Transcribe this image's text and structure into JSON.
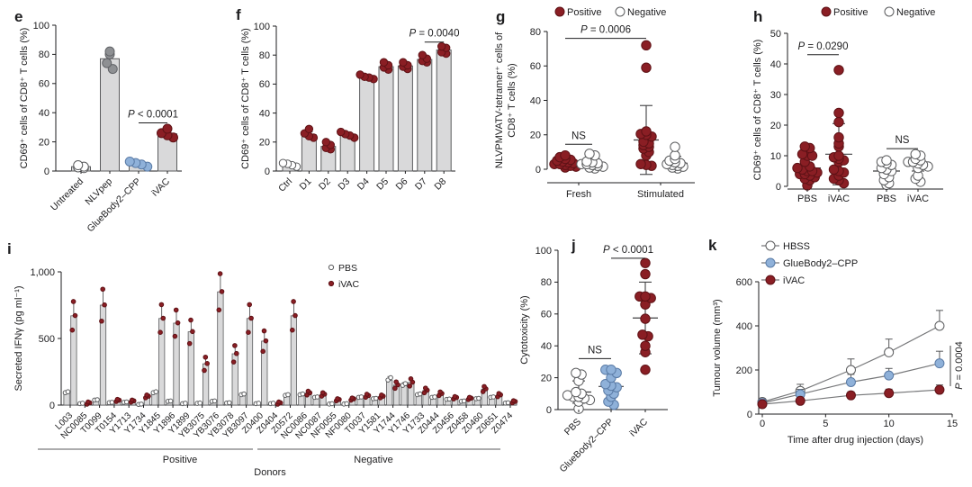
{
  "colors": {
    "red": "#8a1e24",
    "blue": "#8fb1d9",
    "gray": "#8e9093",
    "white": "#ffffff",
    "bar_fill": "#d9d9da",
    "bar_stroke": "#5b5c5e",
    "axis": "#1d1d1f",
    "line_gray": "#77787a"
  },
  "chart_data": [
    {
      "id": "e",
      "type": "bar",
      "panel_label": "e",
      "ylabel": "CD69⁺ cells of CD8⁺ T cells (%)",
      "ylim": [
        0,
        100
      ],
      "yticks": [
        0,
        20,
        40,
        60,
        80,
        100
      ],
      "categories": [
        "Untreated",
        "NLVpep",
        "GlueBody2–CPP",
        "iVAC"
      ],
      "values": [
        3,
        77,
        5,
        25.5
      ],
      "errors": [
        1.5,
        5,
        1.5,
        2.5
      ],
      "points": [
        [
          2,
          2.5,
          3,
          4
        ],
        [
          70,
          74,
          80,
          82
        ],
        [
          3,
          4.5,
          5.5,
          6.5
        ],
        [
          23,
          24.5,
          26,
          29
        ]
      ],
      "point_colors": [
        "white",
        "gray",
        "blue",
        "red"
      ],
      "sig": [
        {
          "text": "P < 0.0001",
          "from": 2,
          "to": 3,
          "v": 33
        }
      ]
    },
    {
      "id": "f",
      "type": "bar",
      "panel_label": "f",
      "ylabel": "CD69⁺ cells of CD8⁺ T cells (%)",
      "ylim": [
        0,
        100
      ],
      "yticks": [
        0,
        20,
        40,
        60,
        80,
        100
      ],
      "categories": [
        "Ctrl",
        "D1",
        "D2",
        "D3",
        "D4",
        "D5",
        "D6",
        "D7",
        "D8"
      ],
      "values": [
        4,
        25,
        17,
        25,
        65,
        72,
        72.5,
        77,
        83.5
      ],
      "errors": [
        1,
        2,
        1.5,
        1.5,
        1.5,
        2,
        2,
        2,
        2.5
      ],
      "points": [
        [
          3,
          4,
          5,
          5.5
        ],
        [
          23,
          24,
          26,
          29
        ],
        [
          15,
          16,
          18,
          20
        ],
        [
          23,
          24.5,
          25.5,
          27
        ],
        [
          63.5,
          64.5,
          65,
          66.5
        ],
        [
          70,
          71.5,
          73,
          75
        ],
        [
          70.5,
          72,
          73,
          75
        ],
        [
          75,
          76,
          77.5,
          80
        ],
        [
          81,
          82,
          85,
          86
        ]
      ],
      "point_colors": [
        "white",
        "red",
        "red",
        "red",
        "red",
        "red",
        "red",
        "red",
        "red"
      ],
      "sig": [
        {
          "text": "P = 0.0040",
          "from": 7,
          "to": 8,
          "v": 89
        }
      ]
    },
    {
      "id": "g",
      "type": "dots",
      "panel_label": "g",
      "ylabel_lines": [
        "NLVPMVATV-tetramer⁺ cells of",
        "CD8⁺ T cells (%)"
      ],
      "ylim": [
        0,
        80
      ],
      "yticks": [
        0,
        20,
        40,
        60,
        80
      ],
      "legend": [
        {
          "label": "Positive",
          "color": "red"
        },
        {
          "label": "Negative",
          "color": "white"
        }
      ],
      "cols": [
        {
          "series": "Positive",
          "color": "red",
          "points": [
            1,
            1.5,
            2,
            2.5,
            3,
            3,
            3.5,
            4,
            4.5,
            5,
            5.5,
            6,
            7,
            8
          ],
          "mean": 4,
          "lo": 1.5,
          "hi": 6.5
        },
        {
          "series": "Negative",
          "color": "white",
          "points": [
            0.5,
            1,
            1.5,
            2,
            2.5,
            3,
            3,
            3.5,
            4,
            4.5,
            8,
            9
          ],
          "mean": 3.5,
          "lo": 1,
          "hi": 6
        },
        {
          "series": "Positive",
          "color": "red",
          "points": [
            2,
            2.5,
            3,
            8,
            10,
            12,
            13,
            14,
            15,
            16,
            19,
            20,
            20.5,
            22,
            59,
            72
          ],
          "mean": 17,
          "lo": -3,
          "hi": 37
        },
        {
          "series": "Negative",
          "color": "white",
          "points": [
            0.5,
            1,
            1.5,
            2,
            2.5,
            3,
            3.5,
            4,
            5,
            6,
            8,
            13
          ],
          "mean": 3.5,
          "lo": 0,
          "hi": 7.5
        }
      ],
      "group_labels": [
        "Fresh",
        "Stimulated"
      ],
      "sig": [
        {
          "text": "NS",
          "cols": [
            0,
            1
          ],
          "v": 14.5
        },
        {
          "text": "P = 0.0006",
          "cols": [
            0,
            2
          ],
          "v": 76
        }
      ]
    },
    {
      "id": "h",
      "type": "dots",
      "panel_label": "h",
      "ylabel_lines": [
        "CD69⁺ cells of CD8⁺ T cells (%)"
      ],
      "ylim": [
        0,
        50
      ],
      "yticks": [
        0,
        10,
        20,
        30,
        40,
        50
      ],
      "legend": [
        {
          "label": "Positive",
          "color": "red"
        },
        {
          "label": "Negative",
          "color": "white"
        }
      ],
      "col_labels": [
        "PBS",
        "iVAC",
        "PBS",
        "iVAC"
      ],
      "cols": [
        {
          "series": "Positive",
          "color": "red",
          "points": [
            0.3,
            2,
            2.5,
            3,
            3.5,
            4,
            4,
            4.5,
            5,
            5,
            5.5,
            6,
            6.5,
            8,
            10,
            10,
            10.5,
            12.5,
            13
          ],
          "mean": 6,
          "lo": 3,
          "hi": 9.5
        },
        {
          "series": "Positive",
          "color": "red",
          "points": [
            1,
            2,
            2.5,
            3.5,
            4.5,
            5,
            5.5,
            8,
            8.5,
            9,
            9.5,
            10,
            13,
            14,
            16,
            21,
            24,
            38
          ],
          "mean": 10.5,
          "lo": 0.5,
          "hi": 20.5
        },
        {
          "series": "Negative",
          "color": "white",
          "points": [
            0.5,
            1,
            2,
            3,
            4,
            5,
            5.5,
            6,
            7,
            7.5,
            8,
            8.5
          ],
          "mean": 5,
          "lo": 2.5,
          "hi": 7.5
        },
        {
          "series": "Negative",
          "color": "white",
          "points": [
            1.5,
            2.5,
            3.5,
            6,
            6.5,
            7,
            7.5,
            8,
            8,
            8.5,
            9,
            10,
            10.5
          ],
          "mean": 7,
          "lo": 5,
          "hi": 9.5
        }
      ],
      "sig": [
        {
          "text": "P = 0.0290",
          "cols": [
            0,
            1
          ],
          "v": 43
        },
        {
          "text": "NS",
          "cols": [
            2,
            3
          ],
          "v": 12.3
        }
      ]
    },
    {
      "id": "i",
      "type": "paired_bars",
      "panel_label": "i",
      "ylabel": "Secreted IFNγ (pg ml⁻¹)",
      "ylim": [
        0,
        1000
      ],
      "yticks": [
        0,
        500,
        1000
      ],
      "ytick_labels": [
        "0",
        "500",
        "1,000"
      ],
      "legend": [
        {
          "label": "PBS",
          "color": "white"
        },
        {
          "label": "iVAC",
          "color": "red"
        }
      ],
      "xlabel": "Donors",
      "donors": [
        {
          "name": "L003",
          "pbs": 90,
          "ivac": 670
        },
        {
          "name": "NC0085",
          "pbs": 8,
          "ivac": 15
        },
        {
          "name": "T0099",
          "pbs": 35,
          "ivac": 750
        },
        {
          "name": "T0154",
          "pbs": 15,
          "ivac": 35
        },
        {
          "name": "Y1713",
          "pbs": 18,
          "ivac": 30
        },
        {
          "name": "Y1734",
          "pbs": 2,
          "ivac": 65
        },
        {
          "name": "Y1845",
          "pbs": 90,
          "ivac": 650
        },
        {
          "name": "Y1896",
          "pbs": 25,
          "ivac": 615
        },
        {
          "name": "Y1899",
          "pbs": 8,
          "ivac": 550
        },
        {
          "name": "YB3075",
          "pbs": 10,
          "ivac": 310
        },
        {
          "name": "YB3076",
          "pbs": 25,
          "ivac": 850
        },
        {
          "name": "YB3078",
          "pbs": 12,
          "ivac": 385
        },
        {
          "name": "YB3097",
          "pbs": 75,
          "ivac": 650
        },
        {
          "name": "Z0400",
          "pbs": 8,
          "ivac": 480
        },
        {
          "name": "Z0404",
          "pbs": 8,
          "ivac": 15
        },
        {
          "name": "Z0572",
          "pbs": 70,
          "ivac": 670
        },
        {
          "name": "NC0086",
          "pbs": 75,
          "ivac": 90
        },
        {
          "name": "NC0087",
          "pbs": 55,
          "ivac": 80
        },
        {
          "name": "NF0055",
          "pbs": 5,
          "ivac": 40
        },
        {
          "name": "NF0080",
          "pbs": 5,
          "ivac": 45
        },
        {
          "name": "T0037",
          "pbs": 55,
          "ivac": 70
        },
        {
          "name": "Y1581",
          "pbs": 45,
          "ivac": 65
        },
        {
          "name": "Y1744",
          "pbs": 185,
          "ivac": 150
        },
        {
          "name": "Y1746",
          "pbs": 145,
          "ivac": 170
        },
        {
          "name": "Y1733",
          "pbs": 75,
          "ivac": 110
        },
        {
          "name": "Z0444",
          "pbs": 55,
          "ivac": 85
        },
        {
          "name": "Z0456",
          "pbs": 40,
          "ivac": 55
        },
        {
          "name": "Z0458",
          "pbs": 25,
          "ivac": 50
        },
        {
          "name": "Z0460",
          "pbs": 45,
          "ivac": 120
        },
        {
          "name": "Z0651",
          "pbs": 55,
          "ivac": 75
        },
        {
          "name": "Z0474",
          "pbs": 12,
          "ivac": 25
        }
      ],
      "groups": [
        {
          "label": "Positive",
          "from": 0,
          "to": 14
        },
        {
          "label": "Negative",
          "from": 15,
          "to": 30
        }
      ]
    },
    {
      "id": "j",
      "type": "dots",
      "panel_label": "j",
      "ylabel_lines": [
        "Cytotoxicity (%)"
      ],
      "ylim": [
        0,
        100
      ],
      "yticks": [
        0,
        20,
        40,
        60,
        80,
        100
      ],
      "col_labels": [
        "PBS",
        "GlueBody2–CPP",
        "iVAC"
      ],
      "rotated_labels": true,
      "cols": [
        {
          "series": "PBS",
          "color": "white",
          "points": [
            0.5,
            5,
            6,
            7,
            8,
            8,
            9,
            10,
            11,
            18,
            22,
            23
          ],
          "mean": 11,
          "lo": 4,
          "hi": 18
        },
        {
          "series": "GlueBody2–CPP",
          "color": "blue",
          "points": [
            3,
            5,
            8,
            10,
            12,
            14,
            15,
            16,
            20,
            23,
            25,
            25
          ],
          "mean": 14.5,
          "lo": 5,
          "hi": 23
        },
        {
          "series": "iVAC",
          "color": "red",
          "points": [
            25,
            36,
            40,
            46,
            47,
            57,
            66,
            70,
            71,
            71,
            85,
            92
          ],
          "mean": 57.5,
          "lo": 35,
          "hi": 80
        }
      ],
      "sig": [
        {
          "text": "NS",
          "cols": [
            0,
            1
          ],
          "v": 32
        },
        {
          "text": "P < 0.0001",
          "cols": [
            1,
            2
          ],
          "v": 95
        }
      ]
    },
    {
      "id": "k",
      "type": "line",
      "panel_label": "k",
      "ylabel": "Tumour volume (mm³)",
      "xlabel": "Time after drug injection (days)",
      "ylim": [
        0,
        600
      ],
      "yticks": [
        0,
        200,
        400,
        600
      ],
      "xlim": [
        0,
        15
      ],
      "xticks": [
        0,
        5,
        10,
        15
      ],
      "x": [
        0,
        3,
        7,
        10,
        14
      ],
      "series": [
        {
          "name": "HBSS",
          "color": "white",
          "values": [
            55,
            105,
            200,
            280,
            400
          ],
          "err": [
            15,
            30,
            50,
            60,
            70
          ]
        },
        {
          "name": "GlueBody2–CPP",
          "color": "blue",
          "values": [
            50,
            90,
            145,
            175,
            230
          ],
          "err": [
            10,
            22,
            35,
            32,
            55
          ]
        },
        {
          "name": "iVAC",
          "color": "red",
          "values": [
            45,
            60,
            85,
            95,
            110
          ],
          "err": [
            8,
            12,
            16,
            18,
            22
          ]
        }
      ],
      "sig": {
        "text": "P = 0.0004",
        "between": [
          1,
          2
        ]
      }
    }
  ]
}
